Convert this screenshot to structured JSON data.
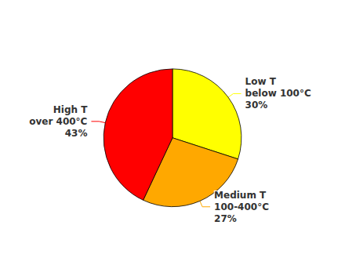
{
  "chart_data": {
    "type": "pie",
    "categories": [
      "Low T\nbelow 100°C",
      "Medium T\n100-400°C",
      "High T\nover 400°C"
    ],
    "values": [
      30,
      27,
      43
    ],
    "value_labels": [
      "30%",
      "27%",
      "43%"
    ],
    "colors": [
      "#FFFF00",
      "#FFA800",
      "#FF0000"
    ],
    "data_labels": true,
    "legend": false
  }
}
